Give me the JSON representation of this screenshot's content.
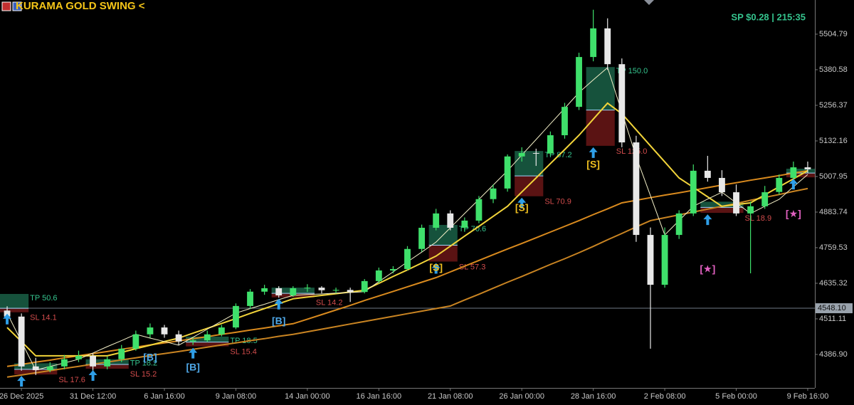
{
  "header": {
    "title": "KURAMA GOLD SWING <",
    "status": "SP $0.28 | 215:35"
  },
  "chart_data": {
    "type": "candlestick",
    "categories": [
      null,
      "26 Dec 2025",
      null,
      null,
      null,
      null,
      "31 Dec 12:00",
      null,
      null,
      null,
      null,
      "6 Jan 16:00",
      null,
      null,
      null,
      null,
      "9 Jan 08:00",
      null,
      null,
      null,
      null,
      "14 Jan 00:00",
      null,
      null,
      null,
      null,
      "16 Jan 16:00",
      null,
      null,
      null,
      null,
      "21 Jan 08:00",
      null,
      null,
      null,
      null,
      "26 Jan 00:00",
      null,
      null,
      null,
      null,
      "28 Jan 16:00",
      null,
      null,
      null,
      null,
      "2 Feb 08:00",
      null,
      null,
      null,
      null,
      "5 Feb 00:00",
      null,
      null,
      null,
      null,
      "9 Feb 16:00"
    ],
    "open": [
      4540,
      4519,
      4345,
      4332,
      4345,
      4370,
      4382,
      4345,
      4370,
      4407,
      4457,
      4481,
      4457,
      4432,
      4436,
      4457,
      4481,
      4556,
      4606,
      4618,
      4593,
      4618,
      4620,
      4611,
      4612,
      4605,
      4643,
      4680,
      4685,
      4755,
      4829,
      4879,
      4829,
      4854,
      4929,
      4966,
      5078,
      5090,
      5088,
      5152,
      5251,
      5425,
      5525,
      5400,
      5127,
      4804,
      4630,
      4804,
      4879,
      5028,
      5003,
      4953,
      4879,
      4904,
      4954,
      5003,
      5040
    ],
    "high": [
      4555,
      4530,
      4375,
      4360,
      4385,
      4400,
      4390,
      4380,
      4420,
      4470,
      4495,
      4490,
      4470,
      4445,
      4470,
      4490,
      4565,
      4615,
      4630,
      4625,
      4625,
      4632,
      4625,
      4620,
      4620,
      4650,
      4690,
      4695,
      4765,
      4840,
      4895,
      4890,
      4865,
      4940,
      4980,
      5085,
      5110,
      5105,
      5165,
      5265,
      5440,
      5590,
      5560,
      5420,
      5150,
      4830,
      4830,
      4890,
      5050,
      5080,
      5030,
      4980,
      4920,
      4975,
      5015,
      5060,
      5060
    ],
    "low": [
      4500,
      4330,
      4315,
      4325,
      4335,
      4360,
      4330,
      4335,
      4360,
      4400,
      4445,
      4445,
      4420,
      4420,
      4430,
      4450,
      4475,
      4545,
      4595,
      4585,
      4588,
      4605,
      4600,
      4600,
      4570,
      4600,
      4635,
      4670,
      4680,
      4745,
      4820,
      4820,
      4815,
      4845,
      4915,
      4955,
      5060,
      5045,
      5080,
      5140,
      5240,
      5410,
      5380,
      5110,
      4780,
      4407,
      4620,
      4790,
      4870,
      4990,
      4940,
      4870,
      4670,
      4895,
      4945,
      4995,
      5020
    ],
    "close": [
      4519,
      4345,
      4332,
      4345,
      4370,
      4382,
      4345,
      4370,
      4407,
      4457,
      4481,
      4457,
      4432,
      4436,
      4457,
      4481,
      4556,
      4606,
      4618,
      4593,
      4618,
      4620,
      4611,
      4612,
      4605,
      4643,
      4680,
      4685,
      4755,
      4829,
      4879,
      4829,
      4854,
      4929,
      4966,
      5078,
      5090,
      5088,
      5152,
      5251,
      5425,
      5525,
      5400,
      5127,
      4804,
      4630,
      4804,
      4879,
      5028,
      5003,
      4953,
      4879,
      4904,
      4953,
      5003,
      5040,
      5033
    ],
    "up_color": "#3fe06b",
    "down_color": "#e8e8e8",
    "series": [
      {
        "color": "#d98a1e",
        "values": [
          4345,
          4352,
          4360,
          4367,
          4375,
          4382,
          4390,
          4397,
          4405,
          4412,
          4420,
          4427,
          4434,
          4442,
          4449,
          4457,
          4464,
          4472,
          4479,
          4487,
          4494,
          4510,
          4526,
          4542,
          4558,
          4575,
          4591,
          4607,
          4623,
          4639,
          4655,
          4675,
          4695,
          4715,
          4735,
          4755,
          4774,
          4794,
          4814,
          4834,
          4854,
          4875,
          4895,
          4916,
          4925,
          4934,
          4943,
          4951,
          4960,
          4969,
          4978,
          4986,
          4995,
          5003,
          5011,
          5020,
          5028
        ]
      },
      {
        "color": "#c98422",
        "values": [
          4308,
          4315,
          4323,
          4330,
          4338,
          4345,
          4353,
          4360,
          4368,
          4375,
          4383,
          4390,
          4397,
          4405,
          4412,
          4420,
          4427,
          4435,
          4442,
          4450,
          4457,
          4466,
          4475,
          4484,
          4493,
          4502,
          4511,
          4520,
          4529,
          4538,
          4547,
          4556,
          4577,
          4597,
          4618,
          4639,
          4659,
          4680,
          4701,
          4721,
          4742,
          4764,
          4787,
          4809,
          4832,
          4854,
          4864,
          4874,
          4884,
          4894,
          4904,
          4914,
          4925,
          4935,
          4945,
          4956,
          4966
        ]
      },
      {
        "color": "#f2d43a",
        "values": [
          4481,
          4432,
          4382,
          4382,
          4382,
          4382,
          4382,
          4382,
          4394,
          4407,
          4419,
          4432,
          4444,
          4461,
          4478,
          4495,
          4512,
          4530,
          4547,
          4564,
          4581,
          4587,
          4593,
          4599,
          4605,
          4611,
          4635,
          4659,
          4682,
          4706,
          4730,
          4765,
          4800,
          4834,
          4869,
          4904,
          4954,
          5003,
          5053,
          5102,
          5152,
          5208,
          5264,
          5227,
          5171,
          5115,
          5059,
          5003,
          4970,
          4937,
          4904,
          4910,
          4916,
          4944,
          4972,
          5000,
          5028
        ]
      },
      {
        "color": "#f4f0c8",
        "values": [
          4531,
          4432,
          4332,
          4345,
          4357,
          4370,
          4392,
          4414,
          4435,
          4457,
          4444,
          4432,
          4419,
          4447,
          4475,
          4503,
          4531,
          4547,
          4562,
          4578,
          4593,
          4596,
          4598,
          4601,
          4603,
          4606,
          4641,
          4675,
          4710,
          4744,
          4779,
          4829,
          4879,
          4928,
          4978,
          5028,
          5083,
          5137,
          5192,
          5246,
          5301,
          5345,
          5388,
          5233,
          5077,
          4941,
          4804,
          4854,
          4904,
          4929,
          4953,
          4916,
          4879,
          4904,
          4928,
          4972,
          5015
        ]
      }
    ],
    "ylim": [
      4270,
      5624
    ],
    "yticks": [
      5504.79,
      5380.58,
      5256.37,
      5132.16,
      5007.95,
      4883.74,
      4759.53,
      4635.32,
      4511.11,
      {
        "value": 4386.9,
        "label": "4386.90"
      }
    ],
    "current_price": {
      "value": 4548.1,
      "label": "4548.10"
    },
    "trades": [
      {
        "x0": 0,
        "x1": 1,
        "entry": 4548,
        "tp": 4598,
        "sl": 4534,
        "tp_label": "TP 50.6",
        "sl_label": "SL 14.1"
      },
      {
        "x0": 1,
        "x1": 3,
        "entry": 4335,
        "tp": 4356,
        "sl": 4317,
        "sl_label": "SL 17.6"
      },
      {
        "x0": 6,
        "x1": 8,
        "entry": 4352,
        "tp": 4370,
        "sl": 4337,
        "tp_label": "TP 18.2",
        "sl_label": "SL 15.2"
      },
      {
        "x0": 13,
        "x1": 15,
        "entry": 4430,
        "tp": 4449,
        "sl": 4415,
        "tp_label": "TP 18.5",
        "sl_label": "SL 15.4"
      },
      {
        "x0": 19,
        "x1": 21,
        "entry": 4600,
        "tp": 4620,
        "sl": 4586,
        "sl_label": "SL 14.2"
      },
      {
        "x0": 30,
        "x1": 31,
        "entry": 4768,
        "tp": 4839,
        "sl": 4711,
        "tp_label": "TP 70.6",
        "sl_label": "SL 57.3"
      },
      {
        "x0": 36,
        "x1": 37,
        "entry": 5010,
        "tp": 5097,
        "sl": 4939,
        "tp_label": "TP 87.2",
        "sl_label": "SL 70.9"
      },
      {
        "x0": 41,
        "x1": 42,
        "entry": 5240,
        "tp": 5390,
        "sl": 5115,
        "tp_label": "TP 150.0",
        "sl_label": "SL 125.0"
      },
      {
        "x0": 49,
        "x1": 51,
        "entry": 4900,
        "tp": 4920,
        "sl": 4881,
        "sl_label": "SL 18.9"
      },
      {
        "x0": 55,
        "x1": 56,
        "entry": 5020,
        "tp": 5035,
        "sl": 5005
      }
    ],
    "signals": [
      {
        "text": "[B]",
        "x": 19,
        "price": 4501,
        "color": "#4fa8e8"
      },
      {
        "text": "[B]",
        "x": 10,
        "price": 4375,
        "color": "#4fa8e8"
      },
      {
        "text": "[B]",
        "x": 13,
        "price": 4340,
        "color": "#4fa8e8"
      },
      {
        "text": "[S]",
        "x": 30,
        "price": 4688,
        "color": "#f0c020"
      },
      {
        "text": "[S]",
        "x": 36,
        "price": 4896,
        "color": "#f0c020"
      },
      {
        "text": "[S]",
        "x": 41,
        "price": 5048,
        "color": "#f0c020"
      },
      {
        "text": "[★]",
        "x": 49,
        "price": 4683,
        "color": "#e060c0"
      },
      {
        "text": "[★]",
        "x": 55,
        "price": 4876,
        "color": "#e060c0"
      }
    ]
  }
}
